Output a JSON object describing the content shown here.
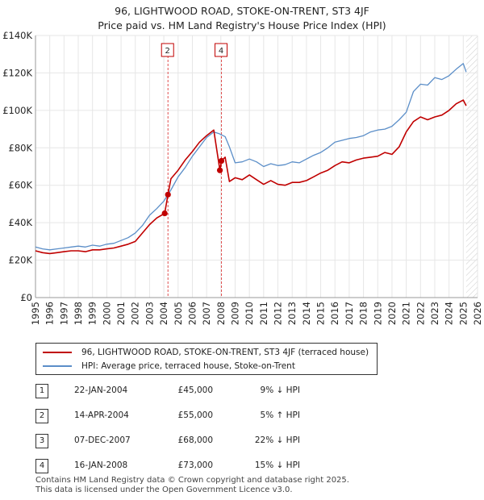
{
  "title_line1": "96, LIGHTWOOD ROAD, STOKE-ON-TRENT, ST3 4JF",
  "title_line2": "Price paid vs. HM Land Registry's House Price Index (HPI)",
  "colors": {
    "price_paid": "#c00000",
    "hpi": "#5b8ec8",
    "grid": "#e6e6e6",
    "marker_line": "#e05050"
  },
  "chart_data": {
    "type": "line",
    "title": "Price paid vs. HM Land Registry's House Price Index (HPI)",
    "xlabel": "",
    "ylabel": "",
    "xlim": [
      1995,
      2026
    ],
    "ylim": [
      0,
      140000
    ],
    "y_ticks": [
      0,
      20000,
      40000,
      60000,
      80000,
      100000,
      120000,
      140000
    ],
    "y_tick_labels": [
      "£0",
      "£20K",
      "£40K",
      "£60K",
      "£80K",
      "£100K",
      "£120K",
      "£140K"
    ],
    "x_ticks": [
      1995,
      1996,
      1997,
      1998,
      1999,
      2000,
      2001,
      2002,
      2003,
      2004,
      2005,
      2006,
      2007,
      2008,
      2009,
      2010,
      2011,
      2012,
      2013,
      2014,
      2015,
      2016,
      2017,
      2018,
      2019,
      2020,
      2021,
      2022,
      2023,
      2024,
      2025,
      2026
    ],
    "grid": true,
    "hatched_after": 2025.2,
    "series": [
      {
        "name": "96, LIGHTWOOD ROAD, STOKE-ON-TRENT, ST3 4JF (terraced house)",
        "x": [
          1995,
          1995.5,
          1996,
          1996.5,
          1997,
          1997.5,
          1998,
          1998.5,
          1999,
          1999.5,
          2000,
          2000.5,
          2001,
          2001.5,
          2002,
          2002.5,
          2003,
          2003.5,
          2004.06,
          2004.29,
          2004.5,
          2005,
          2005.5,
          2006,
          2006.5,
          2007,
          2007.5,
          2007.93,
          2008.04,
          2008.3,
          2008.6,
          2009,
          2009.5,
          2010,
          2010.5,
          2011,
          2011.5,
          2012,
          2012.5,
          2013,
          2013.5,
          2014,
          2014.5,
          2015,
          2015.5,
          2016,
          2016.5,
          2017,
          2017.5,
          2018,
          2018.5,
          2019,
          2019.5,
          2020,
          2020.5,
          2021,
          2021.5,
          2022,
          2022.5,
          2023,
          2023.5,
          2024,
          2024.5,
          2025,
          2025.2
        ],
        "values": [
          25000,
          24000,
          23500,
          24000,
          24500,
          25000,
          25000,
          24500,
          25500,
          25500,
          26000,
          26500,
          27500,
          28500,
          30000,
          34500,
          39000,
          42500,
          45000,
          55000,
          63500,
          68000,
          73500,
          78000,
          83000,
          86500,
          89500,
          68000,
          73000,
          75000,
          62000,
          64000,
          63000,
          65500,
          63000,
          60500,
          62500,
          60500,
          60000,
          61500,
          61500,
          62500,
          64500,
          66500,
          68000,
          70500,
          72500,
          72000,
          73500,
          74500,
          75000,
          75500,
          77500,
          76500,
          80500,
          88500,
          94000,
          96500,
          95000,
          96500,
          97500,
          100000,
          103500,
          105500,
          102500
        ]
      },
      {
        "name": "HPI: Average price, terraced house, Stoke-on-Trent",
        "x": [
          1995,
          1995.5,
          1996,
          1996.5,
          1997,
          1997.5,
          1998,
          1998.5,
          1999,
          1999.5,
          2000,
          2000.5,
          2001,
          2001.5,
          2002,
          2002.5,
          2003,
          2003.5,
          2004,
          2004.5,
          2005,
          2005.5,
          2006,
          2006.5,
          2007,
          2007.5,
          2007.9,
          2008.3,
          2008.6,
          2009,
          2009.5,
          2010,
          2010.5,
          2011,
          2011.5,
          2012,
          2012.5,
          2013,
          2013.5,
          2014,
          2014.5,
          2015,
          2015.5,
          2016,
          2016.5,
          2017,
          2017.5,
          2018,
          2018.5,
          2019,
          2019.5,
          2020,
          2020.5,
          2021,
          2021.5,
          2022,
          2022.5,
          2023,
          2023.5,
          2024,
          2024.5,
          2025,
          2025.2
        ],
        "values": [
          27000,
          26000,
          25500,
          26000,
          26500,
          27000,
          27500,
          27000,
          28000,
          27500,
          28500,
          29000,
          30500,
          32000,
          34500,
          38500,
          44000,
          47500,
          51500,
          57500,
          64500,
          69500,
          75500,
          80500,
          85500,
          88500,
          87500,
          86000,
          80500,
          72000,
          72500,
          74000,
          72500,
          70000,
          71500,
          70500,
          71000,
          72500,
          72000,
          74000,
          76000,
          77500,
          80000,
          83000,
          84000,
          85000,
          85500,
          86500,
          88500,
          89500,
          90000,
          91500,
          95000,
          99000,
          110000,
          114000,
          113500,
          117500,
          116500,
          118500,
          122000,
          125000,
          120500
        ]
      }
    ],
    "sale_markers": [
      {
        "label": "1",
        "x": 2004.06,
        "y": 45000,
        "shown_box": false
      },
      {
        "label": "2",
        "x": 2004.29,
        "y": 55000,
        "shown_box": true
      },
      {
        "label": "3",
        "x": 2007.93,
        "y": 68000,
        "shown_box": false
      },
      {
        "label": "4",
        "x": 2008.04,
        "y": 73000,
        "shown_box": true
      }
    ],
    "legend_position": "below"
  },
  "legend": {
    "price_paid_label": "96, LIGHTWOOD ROAD, STOKE-ON-TRENT, ST3 4JF (terraced house)",
    "hpi_label": "HPI: Average price, terraced house, Stoke-on-Trent"
  },
  "sales": [
    {
      "num": "1",
      "date": "22-JAN-2004",
      "price": "£45,000",
      "hpi": "9% ↓ HPI"
    },
    {
      "num": "2",
      "date": "14-APR-2004",
      "price": "£55,000",
      "hpi": "5% ↑ HPI"
    },
    {
      "num": "3",
      "date": "07-DEC-2007",
      "price": "£68,000",
      "hpi": "22% ↓ HPI"
    },
    {
      "num": "4",
      "date": "16-JAN-2008",
      "price": "£73,000",
      "hpi": "15% ↓ HPI"
    }
  ],
  "footer": {
    "line1": "Contains HM Land Registry data © Crown copyright and database right 2025.",
    "line2": "This data is licensed under the Open Government Licence v3.0."
  }
}
